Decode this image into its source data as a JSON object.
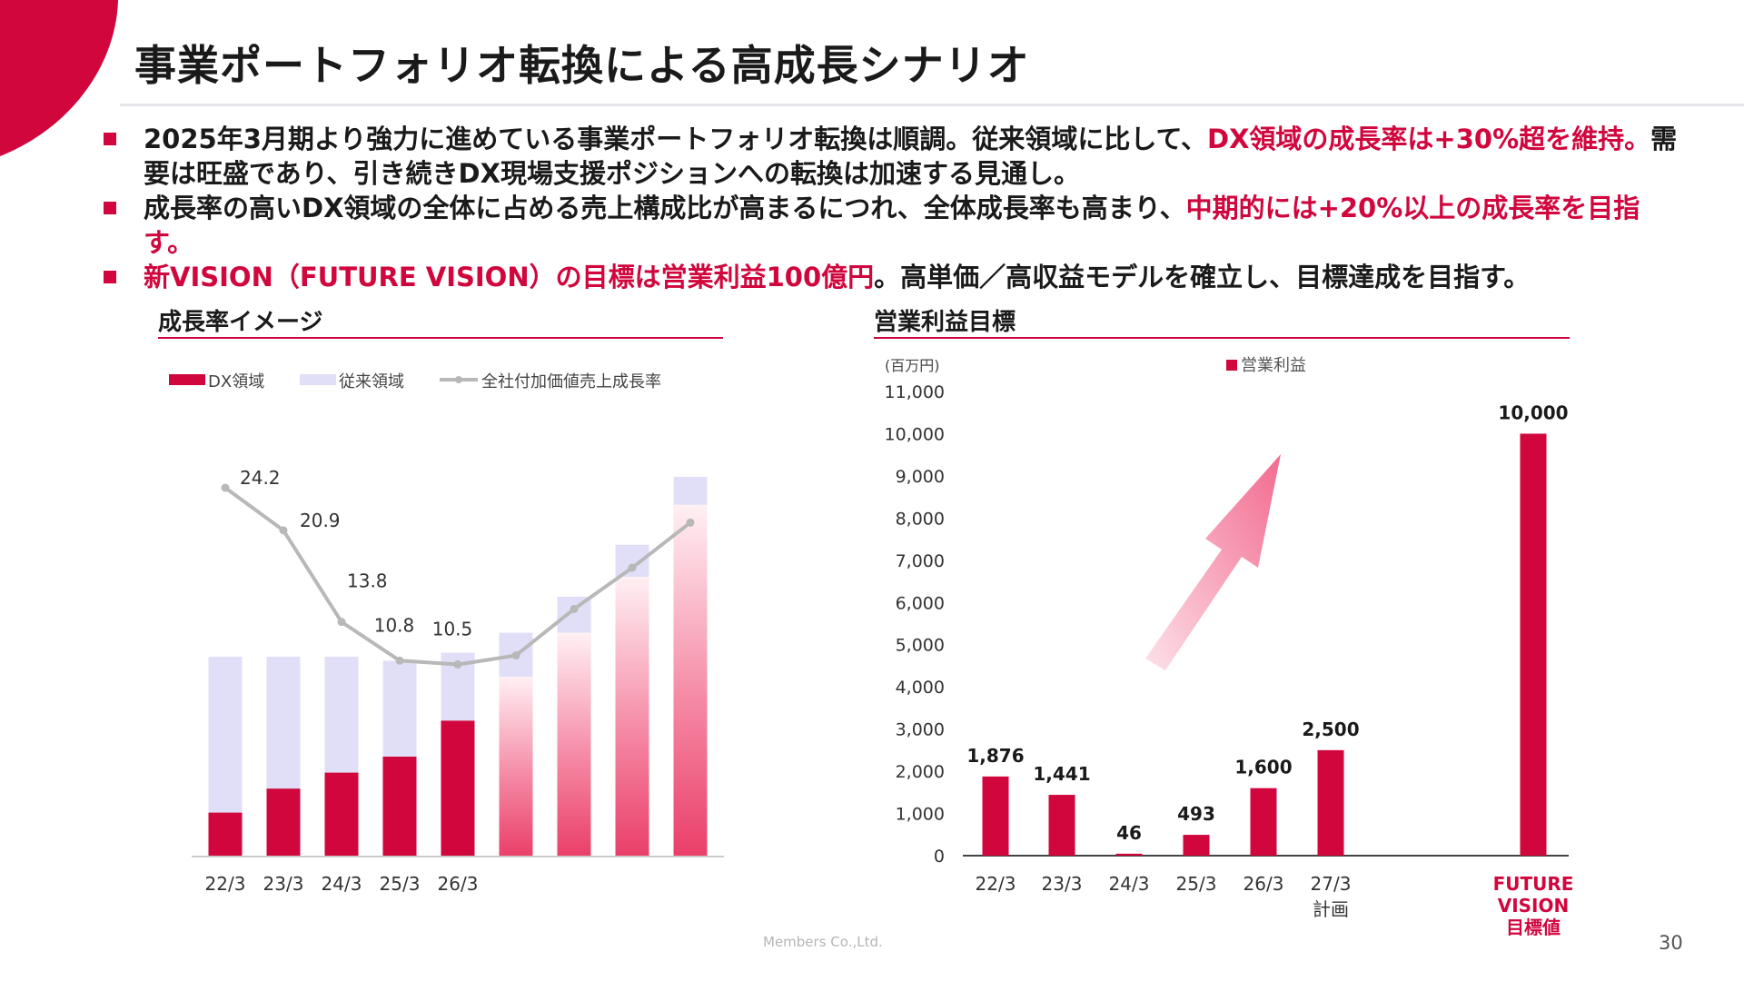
{
  "title": "事業ポートフォリオ転換による高成長シナリオ",
  "colors": {
    "accent": "#d0063d",
    "legacy": "#e0dff7",
    "line": "#b8b8b8"
  },
  "bullets": [
    {
      "parts": [
        {
          "text": "2025年3月期より強力に進めている事業ポートフォリオ転換は順調。従来領域に比して、",
          "highlight": false
        },
        {
          "text": "DX領域の成長率は+30%超を維持。",
          "highlight": true
        },
        {
          "text": "需要は旺盛であり、引き続きDX現場支援ポジションへの転換は加速する見通し。",
          "highlight": false
        }
      ]
    },
    {
      "parts": [
        {
          "text": "成長率の高いDX領域の全体に占める売上構成比が高まるにつれ、全体成長率も高まり、",
          "highlight": false
        },
        {
          "text": "中期的には+20%以上の成長率を目指す。",
          "highlight": true
        }
      ]
    },
    {
      "parts": [
        {
          "text": "新VISION（FUTURE VISION）の目標は営業利益100億円",
          "highlight": true
        },
        {
          "text": "。高単価／高収益モデルを確立し、目標達成を目指す。",
          "highlight": false
        }
      ]
    }
  ],
  "left_section_title": "成長率イメージ",
  "right_section_title": "営業利益目標",
  "chart_data": [
    {
      "type": "bar",
      "stacked": true,
      "title": "成長率イメージ",
      "legend": [
        "DX領域",
        "従来領域",
        "全社付加価値売上成長率"
      ],
      "legend_position": "top-left",
      "categories": [
        "22/3",
        "23/3",
        "24/3",
        "25/3",
        "26/3",
        "",
        "",
        "",
        ""
      ],
      "series": [
        {
          "name": "DX領域",
          "kind": "bar",
          "values": [
            11,
            17,
            21,
            25,
            34,
            45,
            56,
            70,
            88
          ]
        },
        {
          "name": "従来領域",
          "kind": "bar",
          "values": [
            39,
            33,
            29,
            24,
            17,
            11,
            9,
            8,
            7
          ]
        },
        {
          "name": "全社付加価値売上成長率",
          "kind": "line",
          "values": [
            24.2,
            20.9,
            13.8,
            10.8,
            10.5,
            11.2,
            14.8,
            18.0,
            21.5
          ],
          "labels": [
            "24.2",
            "20.9",
            "13.8",
            "10.8",
            "10.5",
            "",
            "",
            "",
            ""
          ]
        }
      ],
      "projected_from_index": 5,
      "grid": false
    },
    {
      "type": "bar",
      "title": "営業利益目標",
      "unit": "(百万円)",
      "legend": [
        "営業利益"
      ],
      "legend_position": "top",
      "categories": [
        "22/3",
        "23/3",
        "24/3",
        "25/3",
        "26/3",
        "27/3\n計画",
        "FUTURE\nVISION\n目標値"
      ],
      "values": [
        1876,
        1441,
        46,
        493,
        1600,
        2500,
        10000
      ],
      "value_labels": [
        "1,876",
        "1,441",
        "46",
        "493",
        "1,600",
        "2,500",
        "10,000"
      ],
      "ylim": [
        0,
        11000
      ],
      "yticks": [
        "0",
        "1,000",
        "2,000",
        "3,000",
        "4,000",
        "5,000",
        "6,000",
        "7,000",
        "8,000",
        "9,000",
        "10,000",
        "11,000"
      ],
      "grid": false
    }
  ],
  "footer": "Members Co.,Ltd.",
  "page_number": "30"
}
